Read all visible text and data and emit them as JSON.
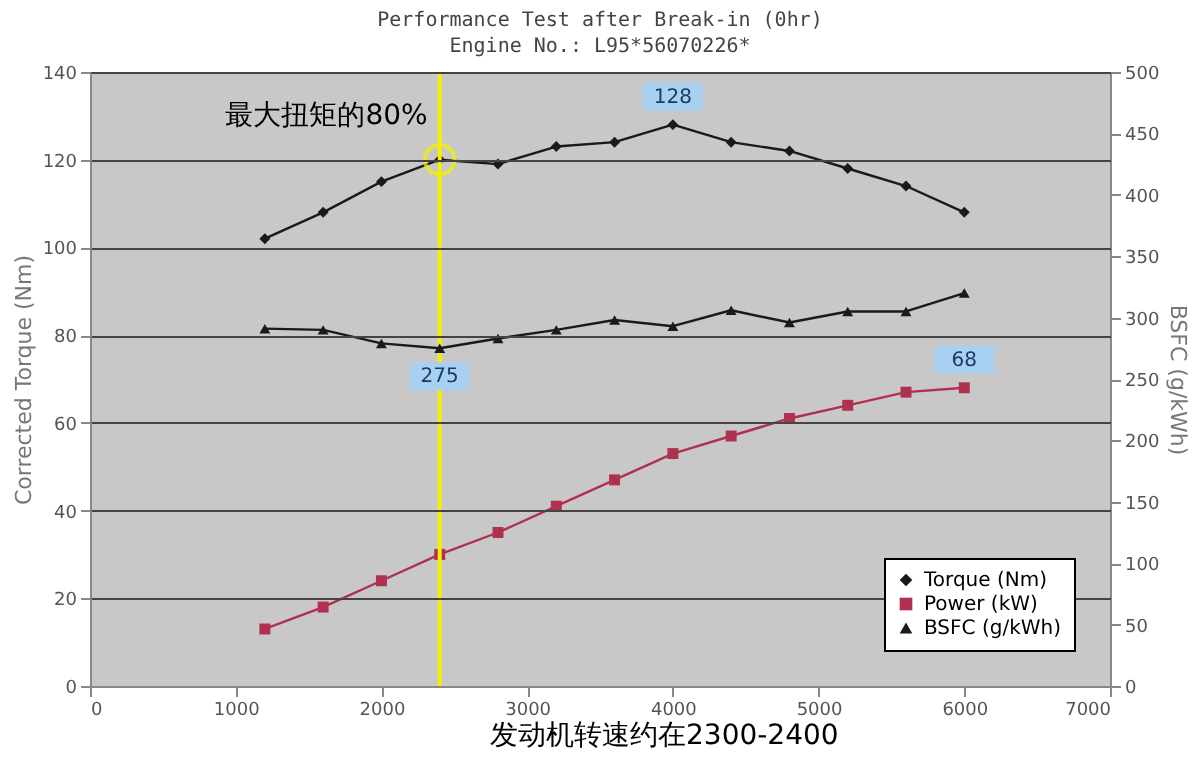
{
  "chart_data": {
    "type": "line",
    "title": "Performance Test after Break-in (0hr)",
    "subtitle": "Engine No.: L95*56070226*",
    "ylabel": "Corrected Torque (Nm)",
    "y2label": "BSFC (g/kWh)",
    "x": [
      1200,
      1600,
      2000,
      2400,
      2800,
      3200,
      3600,
      4000,
      4400,
      4800,
      5200,
      5600,
      6000
    ],
    "series": [
      {
        "name": "Torque (Nm)",
        "color": "#1a1a1a",
        "marker": "diamond",
        "values": [
          102,
          108,
          115,
          120,
          119,
          123,
          124,
          128,
          124,
          122,
          118,
          114,
          108
        ],
        "value_labels": [
          null,
          null,
          null,
          null,
          null,
          null,
          null,
          "128",
          null,
          null,
          null,
          null,
          null
        ]
      },
      {
        "name": "Power (kW)",
        "color": "#b03050",
        "marker": "square",
        "values": [
          13,
          18,
          24,
          30,
          35,
          41,
          47,
          53,
          57,
          61,
          64,
          67,
          68
        ],
        "value_labels": [
          null,
          null,
          null,
          null,
          null,
          null,
          null,
          null,
          null,
          null,
          null,
          null,
          "68"
        ]
      },
      {
        "name": "BSFC (g/kWh)",
        "color": "#1a1a1a",
        "marker": "triangle",
        "axis": "y2",
        "values": [
          291,
          290,
          279,
          275,
          283,
          290,
          298,
          293,
          306,
          296,
          305,
          305,
          320
        ],
        "value_labels": [
          null,
          null,
          null,
          "275",
          null,
          null,
          null,
          null,
          null,
          null,
          null,
          null,
          null
        ]
      }
    ],
    "xlim": [
      0,
      7000
    ],
    "xticks": [
      0,
      1000,
      2000,
      3000,
      4000,
      5000,
      6000,
      7000
    ],
    "ylim": [
      0,
      140
    ],
    "yticks": [
      0,
      20,
      40,
      60,
      80,
      100,
      120,
      140
    ],
    "y2lim": [
      0,
      500
    ],
    "y2ticks": [
      0,
      50,
      100,
      150,
      200,
      250,
      300,
      350,
      400,
      450,
      500
    ],
    "ref_lines": [
      {
        "axis": "x",
        "value": 2400,
        "color": "#f5f000"
      }
    ],
    "annotations": [
      {
        "text": "最大扭矩的80%",
        "x": 2400,
        "y": 120
      },
      "发动机转速约在2300-2400"
    ],
    "grid": "y",
    "legend": "bottom right",
    "line_style": "solid"
  }
}
